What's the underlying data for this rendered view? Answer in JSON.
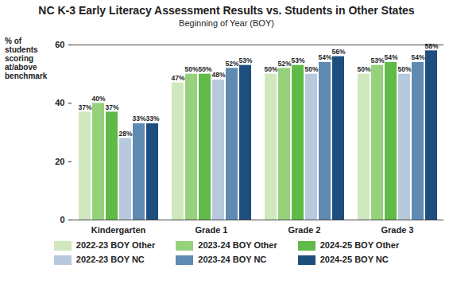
{
  "chart_data": {
    "type": "bar",
    "title": "NC K-3 Early Literacy Assessment Results vs. Students in Other States",
    "subtitle": "Beginning of Year (BOY)",
    "ylabel": "% of students scoring at/above benchmark",
    "categories": [
      "Kindergarten",
      "Grade 1",
      "Grade 2",
      "Grade 3"
    ],
    "series": [
      {
        "name": "2022-23 BOY Other",
        "color": "#cfe8bd",
        "values": [
          37,
          47,
          50,
          50
        ],
        "value_labels": [
          "37%",
          "47%",
          "50%",
          "50%"
        ]
      },
      {
        "name": "2023-24 BOY Other",
        "color": "#96d27c",
        "values": [
          40,
          50,
          52,
          53
        ],
        "value_labels": [
          "40%",
          "50%",
          "52%",
          "53%"
        ]
      },
      {
        "name": "2024-25 BOY Other",
        "color": "#5fba47",
        "values": [
          37,
          50,
          53,
          54
        ],
        "value_labels": [
          "37%",
          "50%",
          "53%",
          "54%"
        ]
      },
      {
        "name": "2022-23 BOY NC",
        "color": "#b7c9dd",
        "values": [
          28,
          48,
          50,
          50
        ],
        "value_labels": [
          "28%",
          "48%",
          "50%",
          "50%"
        ]
      },
      {
        "name": "2023-24 BOY NC",
        "color": "#5f8ab2",
        "values": [
          33,
          52,
          54,
          54
        ],
        "value_labels": [
          "33%",
          "52%",
          "54%",
          "54%"
        ]
      },
      {
        "name": "2024-25 BOY NC",
        "color": "#1d4e7d",
        "values": [
          33,
          53,
          56,
          58
        ],
        "value_labels": [
          "33%",
          "53%",
          "56%",
          "58%"
        ]
      }
    ],
    "ylim": [
      0,
      60
    ],
    "yticks": [
      0,
      20,
      40,
      60
    ],
    "grid": false,
    "data_labels": true,
    "legend": "bottom"
  }
}
